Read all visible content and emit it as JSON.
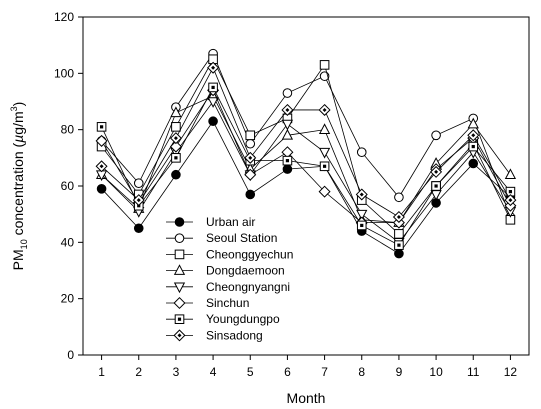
{
  "chart_data": {
    "type": "line",
    "xlabel": "Month",
    "ylabel": {
      "prefix": "PM",
      "sub": "10",
      "middle": " concentration (",
      "unit_mu": "µ",
      "unit_g": "g/m",
      "sup": "3",
      "close": ")"
    },
    "x": [
      1,
      2,
      3,
      4,
      5,
      6,
      7,
      8,
      9,
      10,
      11,
      12
    ],
    "xlim": [
      0.5,
      12.5
    ],
    "ylim": [
      0,
      120
    ],
    "xticks": [
      "1",
      "2",
      "3",
      "4",
      "5",
      "6",
      "7",
      "8",
      "9",
      "10",
      "11",
      "12"
    ],
    "yticks": [
      "0",
      "20",
      "40",
      "60",
      "80",
      "100",
      "120"
    ],
    "grid": false,
    "legend_position": "lower-left",
    "series": [
      {
        "name": "Urban air",
        "marker": "circle-filled",
        "values": [
          59,
          45,
          64,
          83,
          57,
          66,
          67,
          44,
          36,
          54,
          68,
          56
        ]
      },
      {
        "name": "Seoul Station",
        "marker": "circle-open",
        "values": [
          76,
          61,
          88,
          107,
          75,
          93,
          99,
          72,
          56,
          78,
          84,
          49
        ]
      },
      {
        "name": "Cheonggyechun",
        "marker": "square-open",
        "values": [
          74,
          57,
          81,
          105,
          78,
          84,
          103,
          55,
          43,
          60,
          75,
          48
        ]
      },
      {
        "name": "Dongdaemoon",
        "marker": "triangle-up-open",
        "values": [
          64,
          52,
          86,
          92,
          66,
          78,
          80,
          48,
          47,
          68,
          82,
          64
        ]
      },
      {
        "name": "Cheongnyangni",
        "marker": "triangle-down-open",
        "values": [
          64,
          51,
          72,
          90,
          64,
          82,
          72,
          50,
          40,
          57,
          72,
          51
        ]
      },
      {
        "name": "Sinchun",
        "marker": "diamond-open",
        "values": [
          76,
          54,
          74,
          94,
          64,
          72,
          58,
          47,
          47,
          66,
          77,
          53
        ]
      },
      {
        "name": "Youngdungpo",
        "marker": "square-dot",
        "values": [
          81,
          53,
          70,
          95,
          69,
          69,
          67,
          46,
          39,
          60,
          74,
          58
        ]
      },
      {
        "name": "Sinsadong",
        "marker": "diamond-dot",
        "values": [
          67,
          55,
          77,
          102,
          70,
          87,
          87,
          57,
          49,
          65,
          78,
          55
        ]
      }
    ]
  }
}
